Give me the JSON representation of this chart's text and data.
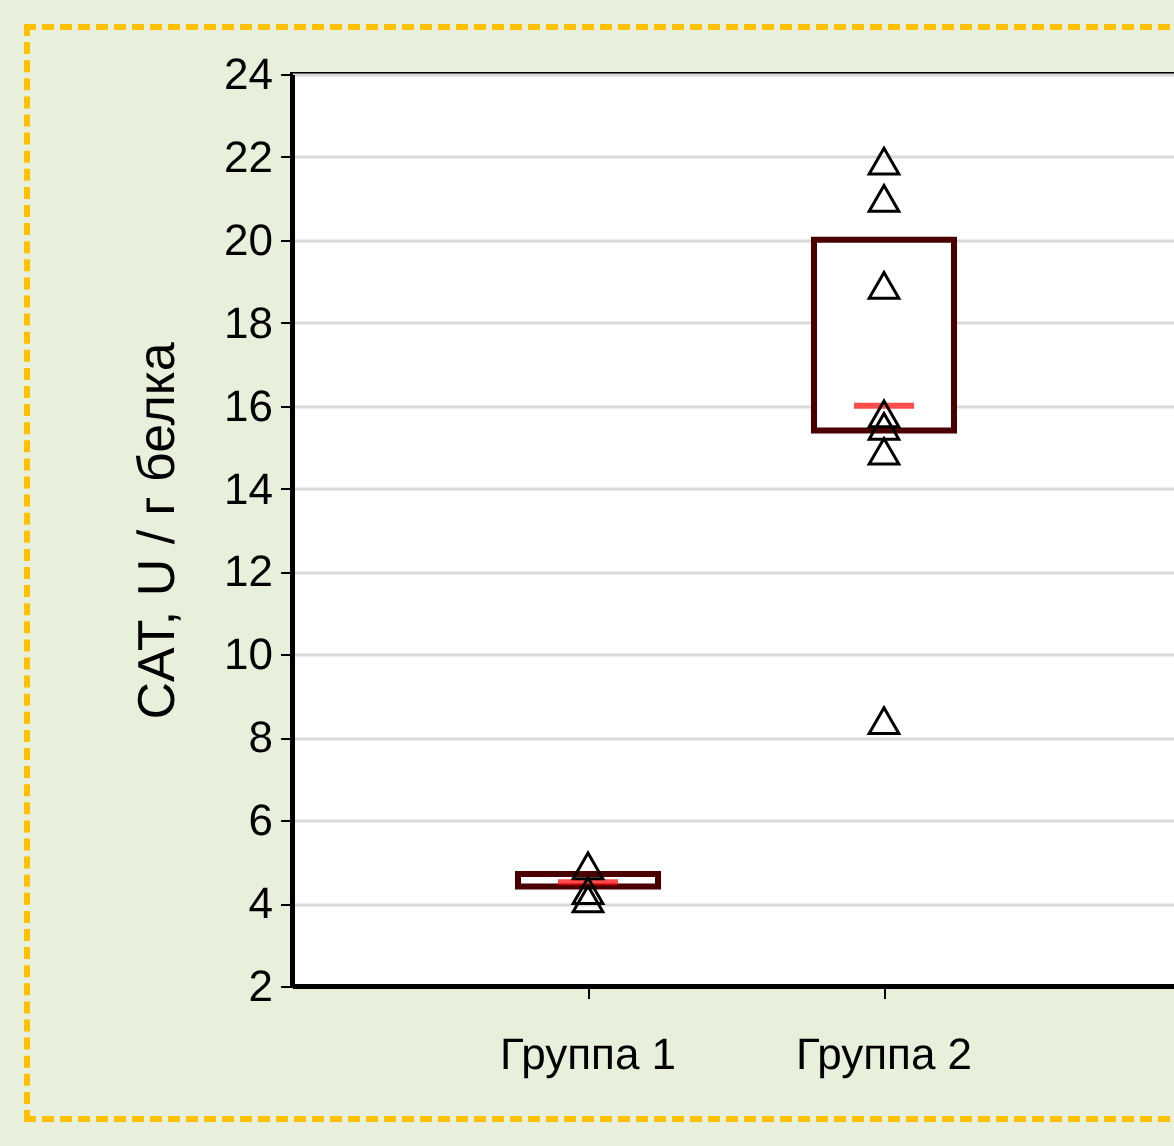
{
  "chart_data": {
    "type": "box",
    "categories": [
      "Группа 1",
      "Группа 2"
    ],
    "ylabel": "CAT, U / г белка",
    "ylim": [
      2,
      24
    ],
    "yticks": [
      2,
      4,
      6,
      8,
      10,
      12,
      14,
      16,
      18,
      20,
      22,
      24
    ],
    "grid": "y",
    "series": [
      {
        "type": "box",
        "color": "#4a0000",
        "boxes": [
          {
            "low": 4.4,
            "q1": 4.4,
            "median": 4.5,
            "q3": 4.7,
            "high": 4.7
          },
          {
            "low": 15.4,
            "q1": 15.4,
            "median": 16,
            "q3": 20,
            "high": 20
          }
        ]
      },
      {
        "type": "scatter",
        "color": "#000000",
        "marker": "triangle",
        "x": [
          "Группа 1",
          "Группа 1",
          "Группа 1",
          "Группа 2",
          "Группа 2",
          "Группа 2",
          "Группа 2",
          "Группа 2",
          "Группа 2",
          "Группа 2"
        ],
        "values": [
          4.9,
          4.3,
          4.1,
          21.9,
          21,
          18.9,
          15.8,
          15.5,
          14.9,
          8.4
        ]
      }
    ]
  }
}
